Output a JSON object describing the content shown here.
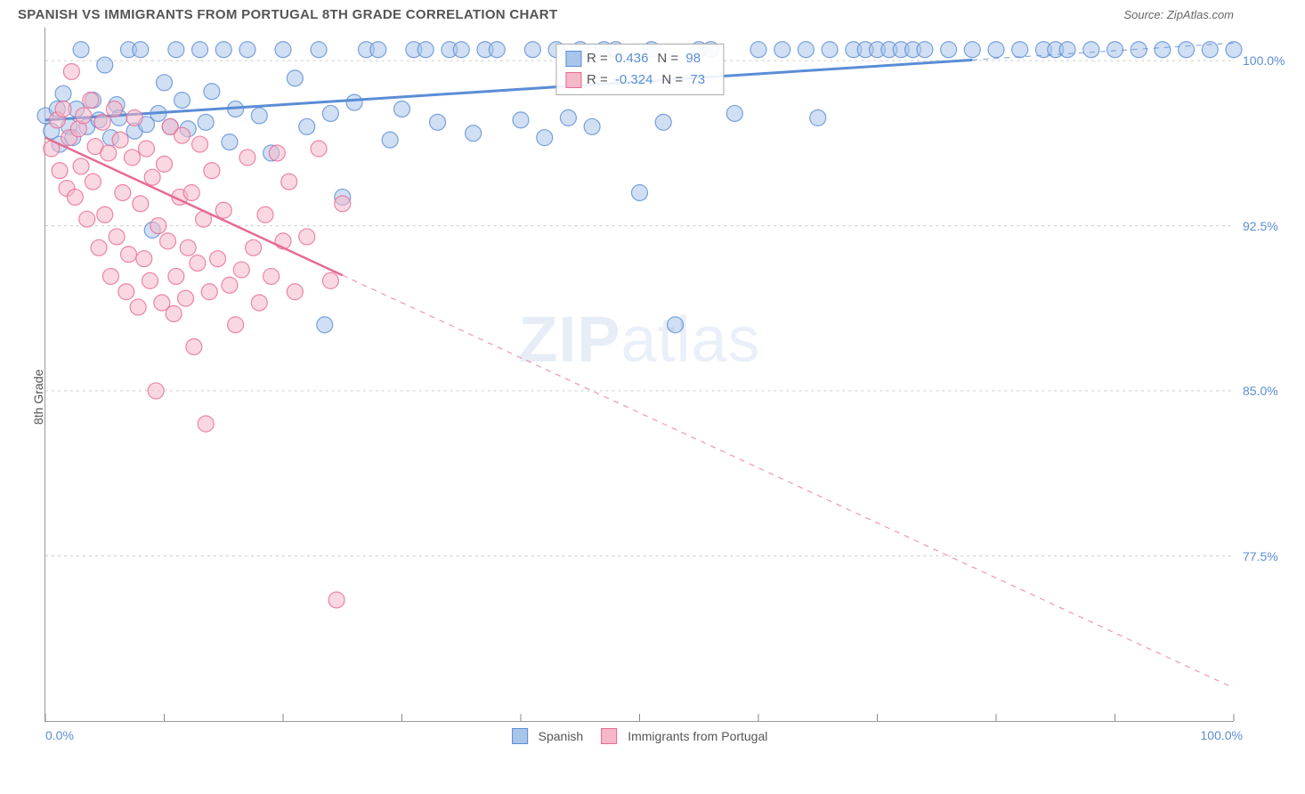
{
  "header": {
    "title": "SPANISH VS IMMIGRANTS FROM PORTUGAL 8TH GRADE CORRELATION CHART",
    "source": "Source: ZipAtlas.com"
  },
  "axes": {
    "y_label": "8th Grade",
    "x_min_label": "0.0%",
    "x_max_label": "100.0%",
    "y_ticks": [
      {
        "label": "100.0%",
        "value": 100.0
      },
      {
        "label": "92.5%",
        "value": 92.5
      },
      {
        "label": "85.0%",
        "value": 85.0
      },
      {
        "label": "77.5%",
        "value": 77.5
      }
    ],
    "x_range": [
      0,
      100
    ],
    "y_range": [
      70,
      101.5
    ]
  },
  "watermark": {
    "zip": "ZIP",
    "atlas": "atlas"
  },
  "series": [
    {
      "id": "spanish",
      "label": "Spanish",
      "color_fill": "#a9c5ea",
      "color_stroke": "#5b8dd6",
      "marker_radius": 9,
      "marker_opacity": 0.55,
      "stats": {
        "r_label": "R =",
        "r_value": "0.436",
        "n_label": "N =",
        "n_value": "98"
      },
      "trend": {
        "x1": 0,
        "y1": 97.3,
        "x2": 100,
        "y2": 100.8,
        "solid_until_x": 78,
        "line_width": 3
      },
      "points": [
        [
          0,
          97.5
        ],
        [
          0.5,
          96.8
        ],
        [
          1,
          97.8
        ],
        [
          1.2,
          96.2
        ],
        [
          1.5,
          98.5
        ],
        [
          2,
          97.0
        ],
        [
          2.3,
          96.5
        ],
        [
          2.6,
          97.8
        ],
        [
          3,
          100.5
        ],
        [
          3.5,
          97.0
        ],
        [
          4,
          98.2
        ],
        [
          4.5,
          97.3
        ],
        [
          5,
          99.8
        ],
        [
          5.5,
          96.5
        ],
        [
          6,
          98.0
        ],
        [
          6.2,
          97.4
        ],
        [
          7,
          100.5
        ],
        [
          7.5,
          96.8
        ],
        [
          8,
          100.5
        ],
        [
          8.5,
          97.1
        ],
        [
          9,
          92.3
        ],
        [
          9.5,
          97.6
        ],
        [
          10,
          99.0
        ],
        [
          10.5,
          97.0
        ],
        [
          11,
          100.5
        ],
        [
          11.5,
          98.2
        ],
        [
          12,
          96.9
        ],
        [
          13,
          100.5
        ],
        [
          13.5,
          97.2
        ],
        [
          14,
          98.6
        ],
        [
          15,
          100.5
        ],
        [
          15.5,
          96.3
        ],
        [
          16,
          97.8
        ],
        [
          17,
          100.5
        ],
        [
          18,
          97.5
        ],
        [
          19,
          95.8
        ],
        [
          20,
          100.5
        ],
        [
          21,
          99.2
        ],
        [
          22,
          97.0
        ],
        [
          23,
          100.5
        ],
        [
          23.5,
          88.0
        ],
        [
          24,
          97.6
        ],
        [
          25,
          93.8
        ],
        [
          26,
          98.1
        ],
        [
          27,
          100.5
        ],
        [
          28,
          100.5
        ],
        [
          29,
          96.4
        ],
        [
          30,
          97.8
        ],
        [
          31,
          100.5
        ],
        [
          32,
          100.5
        ],
        [
          33,
          97.2
        ],
        [
          34,
          100.5
        ],
        [
          35,
          100.5
        ],
        [
          36,
          96.7
        ],
        [
          37,
          100.5
        ],
        [
          38,
          100.5
        ],
        [
          40,
          97.3
        ],
        [
          41,
          100.5
        ],
        [
          42,
          96.5
        ],
        [
          43,
          100.5
        ],
        [
          44,
          97.4
        ],
        [
          45,
          100.5
        ],
        [
          46,
          97.0
        ],
        [
          47,
          100.5
        ],
        [
          48,
          100.5
        ],
        [
          50,
          94.0
        ],
        [
          51,
          100.5
        ],
        [
          52,
          97.2
        ],
        [
          53,
          88.0
        ],
        [
          55,
          100.5
        ],
        [
          56,
          100.5
        ],
        [
          58,
          97.6
        ],
        [
          60,
          100.5
        ],
        [
          62,
          100.5
        ],
        [
          64,
          100.5
        ],
        [
          65,
          97.4
        ],
        [
          66,
          100.5
        ],
        [
          68,
          100.5
        ],
        [
          69,
          100.5
        ],
        [
          70,
          100.5
        ],
        [
          71,
          100.5
        ],
        [
          72,
          100.5
        ],
        [
          73,
          100.5
        ],
        [
          74,
          100.5
        ],
        [
          76,
          100.5
        ],
        [
          78,
          100.5
        ],
        [
          80,
          100.5
        ],
        [
          82,
          100.5
        ],
        [
          84,
          100.5
        ],
        [
          85,
          100.5
        ],
        [
          86,
          100.5
        ],
        [
          88,
          100.5
        ],
        [
          90,
          100.5
        ],
        [
          92,
          100.5
        ],
        [
          94,
          100.5
        ],
        [
          96,
          100.5
        ],
        [
          98,
          100.5
        ],
        [
          100,
          100.5
        ]
      ]
    },
    {
      "id": "portugal",
      "label": "Immigrants from Portugal",
      "color_fill": "#f5b8c8",
      "color_stroke": "#e76a94",
      "marker_radius": 9,
      "marker_opacity": 0.55,
      "stats": {
        "r_label": "R =",
        "r_value": "-0.324",
        "n_label": "N =",
        "n_value": "73"
      },
      "trend": {
        "x1": 0,
        "y1": 96.5,
        "x2": 100,
        "y2": 71.5,
        "solid_until_x": 25,
        "line_width": 2.5
      },
      "points": [
        [
          0.5,
          96.0
        ],
        [
          1,
          97.3
        ],
        [
          1.2,
          95.0
        ],
        [
          1.5,
          97.8
        ],
        [
          1.8,
          94.2
        ],
        [
          2,
          96.5
        ],
        [
          2.2,
          99.5
        ],
        [
          2.5,
          93.8
        ],
        [
          2.8,
          96.9
        ],
        [
          3,
          95.2
        ],
        [
          3.2,
          97.5
        ],
        [
          3.5,
          92.8
        ],
        [
          3.8,
          98.2
        ],
        [
          4,
          94.5
        ],
        [
          4.2,
          96.1
        ],
        [
          4.5,
          91.5
        ],
        [
          4.8,
          97.2
        ],
        [
          5,
          93.0
        ],
        [
          5.3,
          95.8
        ],
        [
          5.5,
          90.2
        ],
        [
          5.8,
          97.8
        ],
        [
          6,
          92.0
        ],
        [
          6.3,
          96.4
        ],
        [
          6.5,
          94.0
        ],
        [
          6.8,
          89.5
        ],
        [
          7,
          91.2
        ],
        [
          7.3,
          95.6
        ],
        [
          7.5,
          97.4
        ],
        [
          7.8,
          88.8
        ],
        [
          8,
          93.5
        ],
        [
          8.3,
          91.0
        ],
        [
          8.5,
          96.0
        ],
        [
          8.8,
          90.0
        ],
        [
          9,
          94.7
        ],
        [
          9.3,
          85.0
        ],
        [
          9.5,
          92.5
        ],
        [
          9.8,
          89.0
        ],
        [
          10,
          95.3
        ],
        [
          10.3,
          91.8
        ],
        [
          10.5,
          97.0
        ],
        [
          10.8,
          88.5
        ],
        [
          11,
          90.2
        ],
        [
          11.3,
          93.8
        ],
        [
          11.5,
          96.6
        ],
        [
          11.8,
          89.2
        ],
        [
          12,
          91.5
        ],
        [
          12.3,
          94.0
        ],
        [
          12.5,
          87.0
        ],
        [
          12.8,
          90.8
        ],
        [
          13,
          96.2
        ],
        [
          13.3,
          92.8
        ],
        [
          13.5,
          83.5
        ],
        [
          13.8,
          89.5
        ],
        [
          14,
          95.0
        ],
        [
          14.5,
          91.0
        ],
        [
          15,
          93.2
        ],
        [
          15.5,
          89.8
        ],
        [
          16,
          88.0
        ],
        [
          16.5,
          90.5
        ],
        [
          17,
          95.6
        ],
        [
          17.5,
          91.5
        ],
        [
          18,
          89.0
        ],
        [
          18.5,
          93.0
        ],
        [
          19,
          90.2
        ],
        [
          19.5,
          95.8
        ],
        [
          20,
          91.8
        ],
        [
          20.5,
          94.5
        ],
        [
          21,
          89.5
        ],
        [
          22,
          92.0
        ],
        [
          23,
          96.0
        ],
        [
          24,
          90.0
        ],
        [
          24.5,
          75.5
        ],
        [
          25,
          93.5
        ]
      ]
    }
  ],
  "legend": {
    "items": [
      {
        "label": "Spanish",
        "fill": "#a9c5ea",
        "stroke": "#5b8dd6"
      },
      {
        "label": "Immigrants from Portugal",
        "fill": "#f5b8c8",
        "stroke": "#e76a94"
      }
    ]
  },
  "style": {
    "grid_color": "#cccccc",
    "tick_color": "#888888",
    "background": "#ffffff"
  }
}
